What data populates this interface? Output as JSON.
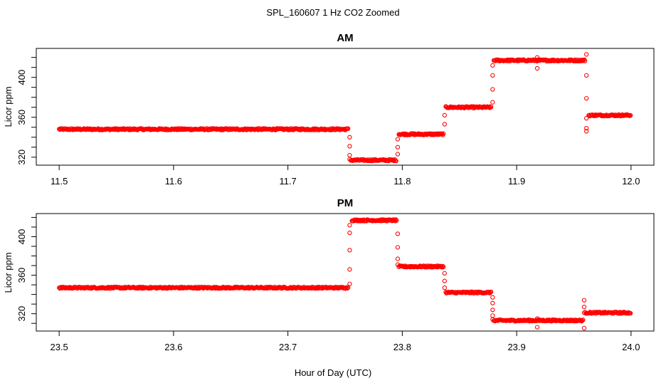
{
  "figure": {
    "title": "SPL_160607  1 Hz CO2 Zoomed",
    "xlabel": "Hour of Day (UTC)"
  },
  "chart_data": [
    {
      "type": "scatter",
      "title": "AM",
      "ylabel": "Licor ppm",
      "xlim": [
        11.48,
        12.02
      ],
      "ylim": [
        312,
        429
      ],
      "x_ticks": [
        11.5,
        11.6,
        11.7,
        11.8,
        11.9,
        12.0
      ],
      "x_tick_labels": [
        "11.5",
        "11.6",
        "11.7",
        "11.8",
        "11.9",
        "12.0"
      ],
      "y_ticks": [
        320,
        360,
        400
      ],
      "y_tick_labels": [
        "320",
        "360",
        "400"
      ],
      "marker": "open-circle",
      "color": "#ff0000",
      "segments": [
        {
          "x_start": 11.5,
          "x_end": 11.753,
          "y": 348
        },
        {
          "x_start": 11.755,
          "x_end": 11.795,
          "y": 317
        },
        {
          "x_start": 11.797,
          "x_end": 11.836,
          "y": 343
        },
        {
          "x_start": 11.838,
          "x_end": 11.878,
          "y": 370
        },
        {
          "x_start": 11.88,
          "x_end": 11.96,
          "y": 417
        },
        {
          "x_start": 11.963,
          "x_end": 12.0,
          "y": 362
        }
      ],
      "transitions": [
        {
          "x": 11.754,
          "y": [
            340,
            331,
            322,
            318
          ]
        },
        {
          "x": 11.796,
          "y": [
            323,
            330,
            338
          ]
        },
        {
          "x": 11.837,
          "y": [
            353,
            362
          ]
        },
        {
          "x": 11.879,
          "y": [
            375,
            388,
            402,
            412
          ]
        },
        {
          "x": 11.918,
          "y": [
            420,
            409
          ]
        },
        {
          "x": 11.961,
          "y": [
            423,
            402,
            379,
            359,
            349,
            346
          ]
        }
      ]
    },
    {
      "type": "scatter",
      "title": "PM",
      "ylabel": "Licor ppm",
      "xlim": [
        23.48,
        24.02
      ],
      "ylim": [
        302,
        424
      ],
      "x_ticks": [
        23.5,
        23.6,
        23.7,
        23.8,
        23.9,
        24.0
      ],
      "x_tick_labels": [
        "23.5",
        "23.6",
        "23.7",
        "23.8",
        "23.9",
        "24.0"
      ],
      "y_ticks": [
        320,
        360,
        400
      ],
      "y_tick_labels": [
        "320",
        "360",
        "400"
      ],
      "marker": "open-circle",
      "color": "#ff0000",
      "segments": [
        {
          "x_start": 23.5,
          "x_end": 23.753,
          "y": 347
        },
        {
          "x_start": 23.756,
          "x_end": 23.795,
          "y": 417
        },
        {
          "x_start": 23.797,
          "x_end": 23.836,
          "y": 369
        },
        {
          "x_start": 23.838,
          "x_end": 23.878,
          "y": 342
        },
        {
          "x_start": 23.88,
          "x_end": 23.958,
          "y": 313
        },
        {
          "x_start": 23.96,
          "x_end": 24.0,
          "y": 321
        }
      ],
      "transitions": [
        {
          "x": 23.754,
          "y": [
            351,
            366,
            386,
            404,
            412
          ]
        },
        {
          "x": 23.796,
          "y": [
            403,
            389,
            377,
            371
          ]
        },
        {
          "x": 23.837,
          "y": [
            362,
            354,
            347
          ]
        },
        {
          "x": 23.879,
          "y": [
            337,
            331,
            324,
            318,
            314
          ]
        },
        {
          "x": 23.918,
          "y": [
            315,
            306
          ]
        },
        {
          "x": 23.959,
          "y": [
            305,
            334,
            327,
            321
          ]
        }
      ]
    }
  ]
}
